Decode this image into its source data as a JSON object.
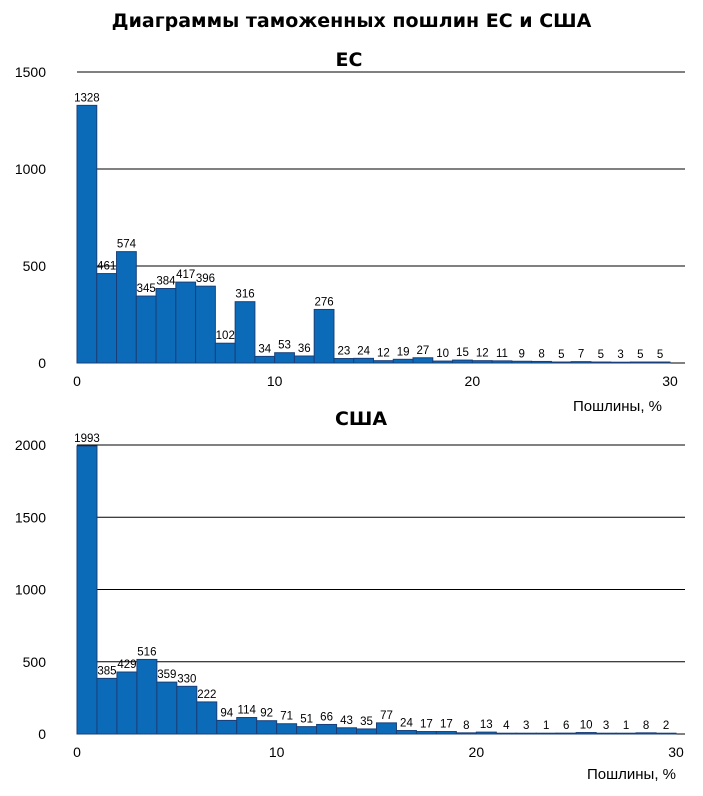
{
  "title": "Диаграммы таможенных пошлин ЕС и США",
  "colors": {
    "bar_fill": "#0b6bb8",
    "bar_stroke": "#1a3f78",
    "grid": "#000000"
  },
  "chart_data": [
    {
      "type": "bar",
      "title": "ЕС",
      "xlabel": "Пошлины, %",
      "ylabel": "",
      "xlim": [
        0,
        30
      ],
      "ylim": [
        0,
        1500
      ],
      "xticks": [
        0,
        10,
        20,
        30
      ],
      "yticks": [
        0,
        500,
        1000,
        1500
      ],
      "grid": true,
      "bin_width": 1,
      "values": [
        1328,
        461,
        574,
        345,
        384,
        417,
        396,
        102,
        316,
        34,
        53,
        36,
        276,
        23,
        24,
        12,
        19,
        27,
        10,
        15,
        12,
        11,
        9,
        8,
        5,
        7,
        5,
        3,
        5,
        5
      ]
    },
    {
      "type": "bar",
      "title": "США",
      "xlabel": "Пошлины, %",
      "ylabel": "",
      "xlim": [
        0,
        30
      ],
      "ylim": [
        0,
        2000
      ],
      "xticks": [
        0,
        10,
        20,
        30
      ],
      "yticks": [
        0,
        500,
        1000,
        1500,
        2000
      ],
      "grid": true,
      "bin_width": 1,
      "values": [
        1993,
        385,
        429,
        516,
        359,
        330,
        222,
        94,
        114,
        92,
        71,
        51,
        66,
        43,
        35,
        77,
        24,
        17,
        17,
        8,
        13,
        4,
        3,
        1,
        6,
        10,
        3,
        1,
        8,
        2
      ]
    }
  ]
}
